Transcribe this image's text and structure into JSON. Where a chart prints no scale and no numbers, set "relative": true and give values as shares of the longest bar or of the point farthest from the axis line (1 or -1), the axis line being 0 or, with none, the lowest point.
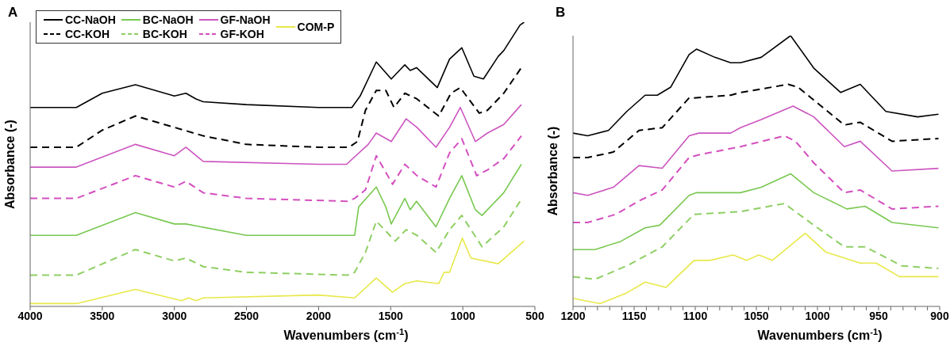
{
  "chart_data": [
    {
      "type": "line",
      "title": "A",
      "xlabel": "Wavenumbers (cm$^{-1}$)",
      "ylabel": "Absorbance (-)",
      "relative": true,
      "xlim": [
        4000,
        500
      ],
      "xticks": [
        4000,
        3500,
        3000,
        2500,
        2000,
        1500,
        1000,
        500
      ],
      "legend": "top left",
      "series": [
        {
          "name": "CC-NaOH",
          "color": "#000000",
          "line_style": "solid",
          "x": [
            4000,
            3680,
            3500,
            3270,
            3000,
            2920,
            2850,
            2800,
            2500,
            2000,
            1769,
            1712,
            1600,
            1496,
            1402,
            1365,
            1321,
            1177,
            1092,
            1007,
            923,
            857,
            754,
            716,
            603,
            575
          ],
          "values": [
            0.7,
            0.7,
            0.75,
            0.78,
            0.74,
            0.75,
            0.73,
            0.72,
            0.71,
            0.7,
            0.7,
            0.74,
            0.86,
            0.8,
            0.85,
            0.83,
            0.84,
            0.77,
            0.87,
            0.91,
            0.81,
            0.8,
            0.88,
            0.9,
            0.99,
            1.0
          ]
        },
        {
          "name": "CC-KOH",
          "color": "#000000",
          "line_style": "dashed",
          "x": [
            4000,
            3680,
            3500,
            3270,
            3000,
            2800,
            2500,
            2000,
            1788,
            1731,
            1675,
            1600,
            1534,
            1477,
            1402,
            1318,
            1167,
            1082,
            1017,
            989,
            886,
            829,
            716,
            594
          ],
          "values": [
            0.56,
            0.56,
            0.62,
            0.67,
            0.63,
            0.6,
            0.57,
            0.56,
            0.56,
            0.58,
            0.69,
            0.76,
            0.76,
            0.7,
            0.75,
            0.73,
            0.67,
            0.75,
            0.77,
            0.75,
            0.68,
            0.69,
            0.75,
            0.84
          ]
        },
        {
          "name": "BC-NaOH",
          "color": "#78c850",
          "line_style": "solid",
          "x": [
            4000,
            3680,
            3270,
            3000,
            2920,
            2500,
            1800,
            1750,
            1722,
            1600,
            1534,
            1496,
            1402,
            1365,
            1321,
            1186,
            1092,
            1007,
            913,
            867,
            716,
            594
          ],
          "values": [
            0.25,
            0.25,
            0.33,
            0.29,
            0.29,
            0.25,
            0.25,
            0.25,
            0.35,
            0.42,
            0.35,
            0.29,
            0.38,
            0.34,
            0.37,
            0.28,
            0.38,
            0.46,
            0.34,
            0.32,
            0.4,
            0.5
          ]
        },
        {
          "name": "BC-KOH",
          "color": "#8fcf63",
          "line_style": "dashed",
          "x": [
            4000,
            3680,
            3270,
            3000,
            2920,
            2800,
            2500,
            1800,
            1750,
            1675,
            1600,
            1468,
            1393,
            1318,
            1186,
            1092,
            1007,
            867,
            716,
            603
          ],
          "values": [
            0.11,
            0.11,
            0.2,
            0.16,
            0.17,
            0.14,
            0.12,
            0.11,
            0.12,
            0.19,
            0.3,
            0.23,
            0.27,
            0.25,
            0.19,
            0.27,
            0.32,
            0.21,
            0.28,
            0.37
          ]
        },
        {
          "name": "GF-NaOH",
          "color": "#cc55c0",
          "line_style": "solid",
          "x": [
            4000,
            3680,
            3270,
            3000,
            2920,
            2800,
            2000,
            1806,
            1656,
            1600,
            1496,
            1393,
            1318,
            1186,
            1092,
            1017,
            913,
            829,
            716,
            594
          ],
          "values": [
            0.49,
            0.49,
            0.57,
            0.53,
            0.56,
            0.51,
            0.5,
            0.5,
            0.57,
            0.61,
            0.58,
            0.66,
            0.63,
            0.56,
            0.63,
            0.7,
            0.58,
            0.61,
            0.64,
            0.71
          ]
        },
        {
          "name": "GF-KOH",
          "color": "#d44fbf",
          "line_style": "dashed",
          "x": [
            4000,
            3680,
            3270,
            3000,
            2920,
            2800,
            2500,
            1800,
            1750,
            1675,
            1600,
            1487,
            1402,
            1318,
            1186,
            1092,
            1007,
            904,
            829,
            716,
            594
          ],
          "values": [
            0.38,
            0.38,
            0.46,
            0.42,
            0.44,
            0.4,
            0.38,
            0.37,
            0.38,
            0.41,
            0.53,
            0.43,
            0.5,
            0.46,
            0.42,
            0.54,
            0.59,
            0.46,
            0.48,
            0.52,
            0.6
          ]
        },
        {
          "name": "COM-P",
          "color": "#e8e84a",
          "line_style": "solid",
          "x": [
            4000,
            3680,
            3270,
            2950,
            2900,
            2850,
            2800,
            2000,
            1750,
            1600,
            1487,
            1402,
            1321,
            1167,
            1130,
            1092,
            1003,
            943,
            754,
            575
          ],
          "values": [
            0.01,
            0.01,
            0.06,
            0.02,
            0.03,
            0.02,
            0.03,
            0.04,
            0.03,
            0.1,
            0.05,
            0.08,
            0.09,
            0.08,
            0.12,
            0.12,
            0.24,
            0.17,
            0.15,
            0.23
          ]
        }
      ]
    },
    {
      "type": "line",
      "title": "B",
      "xlabel": "Wavenumbers (cm$^{-1}$)",
      "ylabel": "Absorbance (-)",
      "relative": true,
      "xlim": [
        1200,
        900
      ],
      "xticks": [
        1200,
        {
          "value": 1190,
          "label": null
        },
        {
          "value": 1180,
          "label": null
        },
        {
          "value": 1170,
          "label": null
        },
        {
          "value": 1160,
          "label": null
        },
        1150,
        {
          "value": 1140,
          "label": null
        },
        {
          "value": 1130,
          "label": null
        },
        {
          "value": 1120,
          "label": null
        },
        {
          "value": 1110,
          "label": null
        },
        1100,
        {
          "value": 1090,
          "label": null
        },
        {
          "value": 1080,
          "label": null
        },
        {
          "value": 1070,
          "label": null
        },
        {
          "value": 1060,
          "label": null
        },
        1050,
        {
          "value": 1040,
          "label": null
        },
        {
          "value": 1030,
          "label": null
        },
        {
          "value": 1020,
          "label": null
        },
        {
          "value": 1010,
          "label": null
        },
        1000,
        {
          "value": 990,
          "label": null
        },
        {
          "value": 980,
          "label": null
        },
        {
          "value": 970,
          "label": null
        },
        {
          "value": 960,
          "label": null
        },
        950,
        {
          "value": 940,
          "label": null
        },
        {
          "value": 930,
          "label": null
        },
        {
          "value": 920,
          "label": null
        },
        {
          "value": 910,
          "label": null
        },
        900
      ],
      "series": [
        {
          "color": "#000000",
          "line_style": "solid",
          "x": [
            1200,
            1188,
            1171,
            1156,
            1141,
            1131,
            1120,
            1105,
            1099,
            1084,
            1071,
            1063,
            1046,
            1022,
            1003,
            981,
            965,
            944,
            918,
            901
          ],
          "values": [
            0.64,
            0.63,
            0.65,
            0.72,
            0.78,
            0.78,
            0.81,
            0.93,
            0.95,
            0.92,
            0.9,
            0.9,
            0.92,
            1.0,
            0.88,
            0.79,
            0.82,
            0.72,
            0.7,
            0.71
          ]
        },
        {
          "color": "#000000",
          "line_style": "dashed",
          "x": [
            1200,
            1188,
            1167,
            1146,
            1127,
            1105,
            1101,
            1071,
            1063,
            1024,
            1016,
            978,
            965,
            939,
            901
          ],
          "values": [
            0.55,
            0.55,
            0.57,
            0.65,
            0.66,
            0.77,
            0.77,
            0.78,
            0.79,
            0.82,
            0.81,
            0.67,
            0.68,
            0.61,
            0.62
          ]
        },
        {
          "color": "#cc55c0",
          "line_style": "solid",
          "x": [
            1200,
            1188,
            1167,
            1146,
            1127,
            1105,
            1097,
            1071,
            1063,
            1046,
            1020,
            1003,
            978,
            965,
            939,
            901
          ],
          "values": [
            0.42,
            0.41,
            0.44,
            0.52,
            0.51,
            0.63,
            0.64,
            0.64,
            0.66,
            0.69,
            0.74,
            0.7,
            0.59,
            0.61,
            0.5,
            0.51
          ]
        },
        {
          "color": "#d44fbf",
          "line_style": "dashed",
          "x": [
            1200,
            1188,
            1165,
            1146,
            1127,
            1105,
            1097,
            1063,
            1027,
            1018,
            1003,
            978,
            965,
            939,
            901
          ],
          "values": [
            0.31,
            0.31,
            0.34,
            0.39,
            0.43,
            0.55,
            0.56,
            0.59,
            0.63,
            0.61,
            0.53,
            0.42,
            0.43,
            0.36,
            0.37
          ]
        },
        {
          "color": "#78c850",
          "line_style": "solid",
          "x": [
            1200,
            1182,
            1161,
            1141,
            1129,
            1105,
            1099,
            1063,
            1046,
            1022,
            1003,
            976,
            961,
            939,
            901
          ],
          "values": [
            0.21,
            0.21,
            0.24,
            0.29,
            0.3,
            0.41,
            0.42,
            0.42,
            0.44,
            0.49,
            0.42,
            0.36,
            0.37,
            0.31,
            0.29
          ]
        },
        {
          "color": "#8fcf63",
          "line_style": "dashed",
          "x": [
            1200,
            1182,
            1156,
            1127,
            1101,
            1063,
            1027,
            1003,
            978,
            961,
            931,
            901
          ],
          "values": [
            0.11,
            0.1,
            0.15,
            0.22,
            0.34,
            0.35,
            0.38,
            0.3,
            0.22,
            0.22,
            0.15,
            0.14
          ]
        },
        {
          "color": "#e8e84a",
          "line_style": "solid",
          "x": [
            1200,
            1178,
            1156,
            1141,
            1124,
            1101,
            1088,
            1069,
            1058,
            1048,
            1037,
            1010,
            993,
            965,
            952,
            933,
            901
          ],
          "values": [
            0.03,
            0.01,
            0.05,
            0.09,
            0.07,
            0.17,
            0.17,
            0.19,
            0.17,
            0.19,
            0.17,
            0.27,
            0.2,
            0.16,
            0.16,
            0.11,
            0.11
          ]
        }
      ]
    }
  ]
}
